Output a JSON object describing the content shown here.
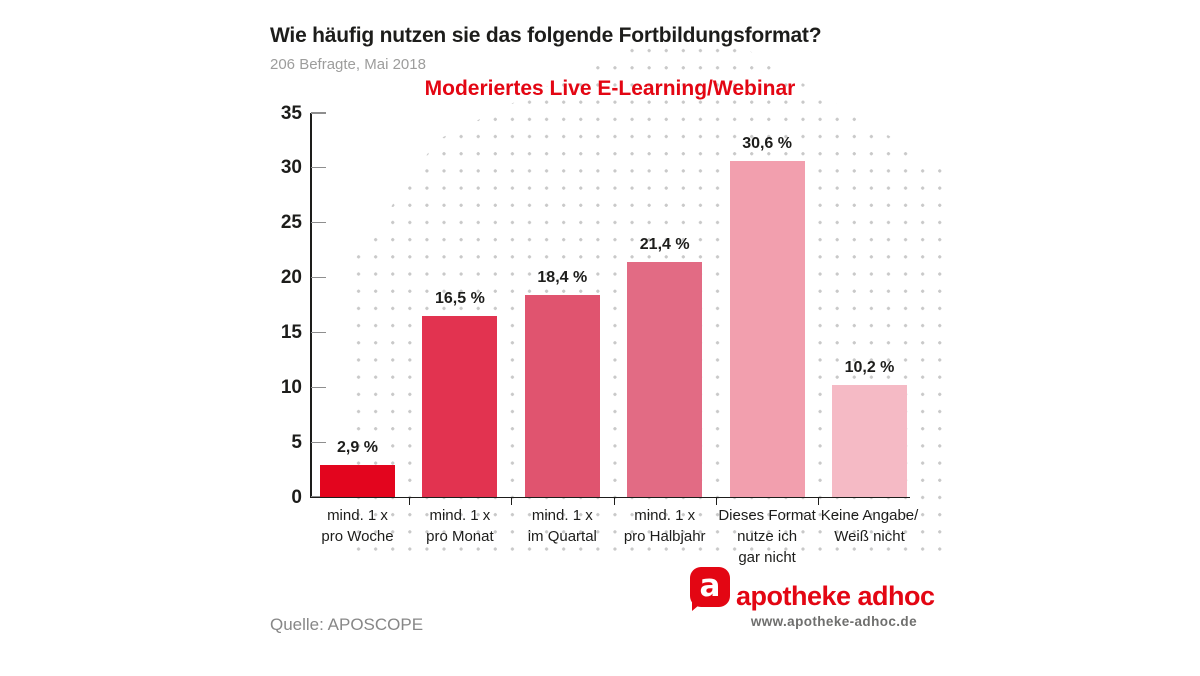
{
  "header": {
    "title": "Wie häufig nutzen sie das folgende Fortbildungsformat?",
    "subtitle": "206 Befragte, Mai 2018"
  },
  "chart_data": {
    "type": "bar",
    "title": "Moderiertes Live E-Learning/Webinar",
    "categories": [
      "mind. 1 x\npro Woche",
      "mind. 1 x\npro Monat",
      "mind. 1 x\nim Quartal",
      "mind. 1 x\npro Halbjahr",
      "Dieses Format\nnutze ich\ngar nicht",
      "Keine Angabe/\nWeiß nicht"
    ],
    "values": [
      2.9,
      16.5,
      18.4,
      21.4,
      30.6,
      10.2
    ],
    "value_labels": [
      "2,9 %",
      "16,5 %",
      "18,4 %",
      "21,4 %",
      "30,6 %",
      "10,2 %"
    ],
    "bar_colors": [
      "#e3051e",
      "#e23350",
      "#e0546f",
      "#e26b84",
      "#f29fae",
      "#f5bac5"
    ],
    "ylim": [
      0,
      35
    ],
    "yticks": [
      0,
      5,
      10,
      15,
      20,
      25,
      30,
      35
    ],
    "xlabel": "",
    "ylabel": "",
    "legend": "none",
    "background": "light-gray dot grid with diagonal stepped edges"
  },
  "colors": {
    "accent_red": "#e30613",
    "text_dark": "#1d1d1b",
    "text_gray": "#9d9d9c",
    "dot_gray": "#c9c9c9"
  },
  "footer": {
    "source": "Quelle: APOSCOPE",
    "brand": "apotheke adhoc",
    "brand_url": "www.apotheke-adhoc.de",
    "logo_letter": "a"
  }
}
